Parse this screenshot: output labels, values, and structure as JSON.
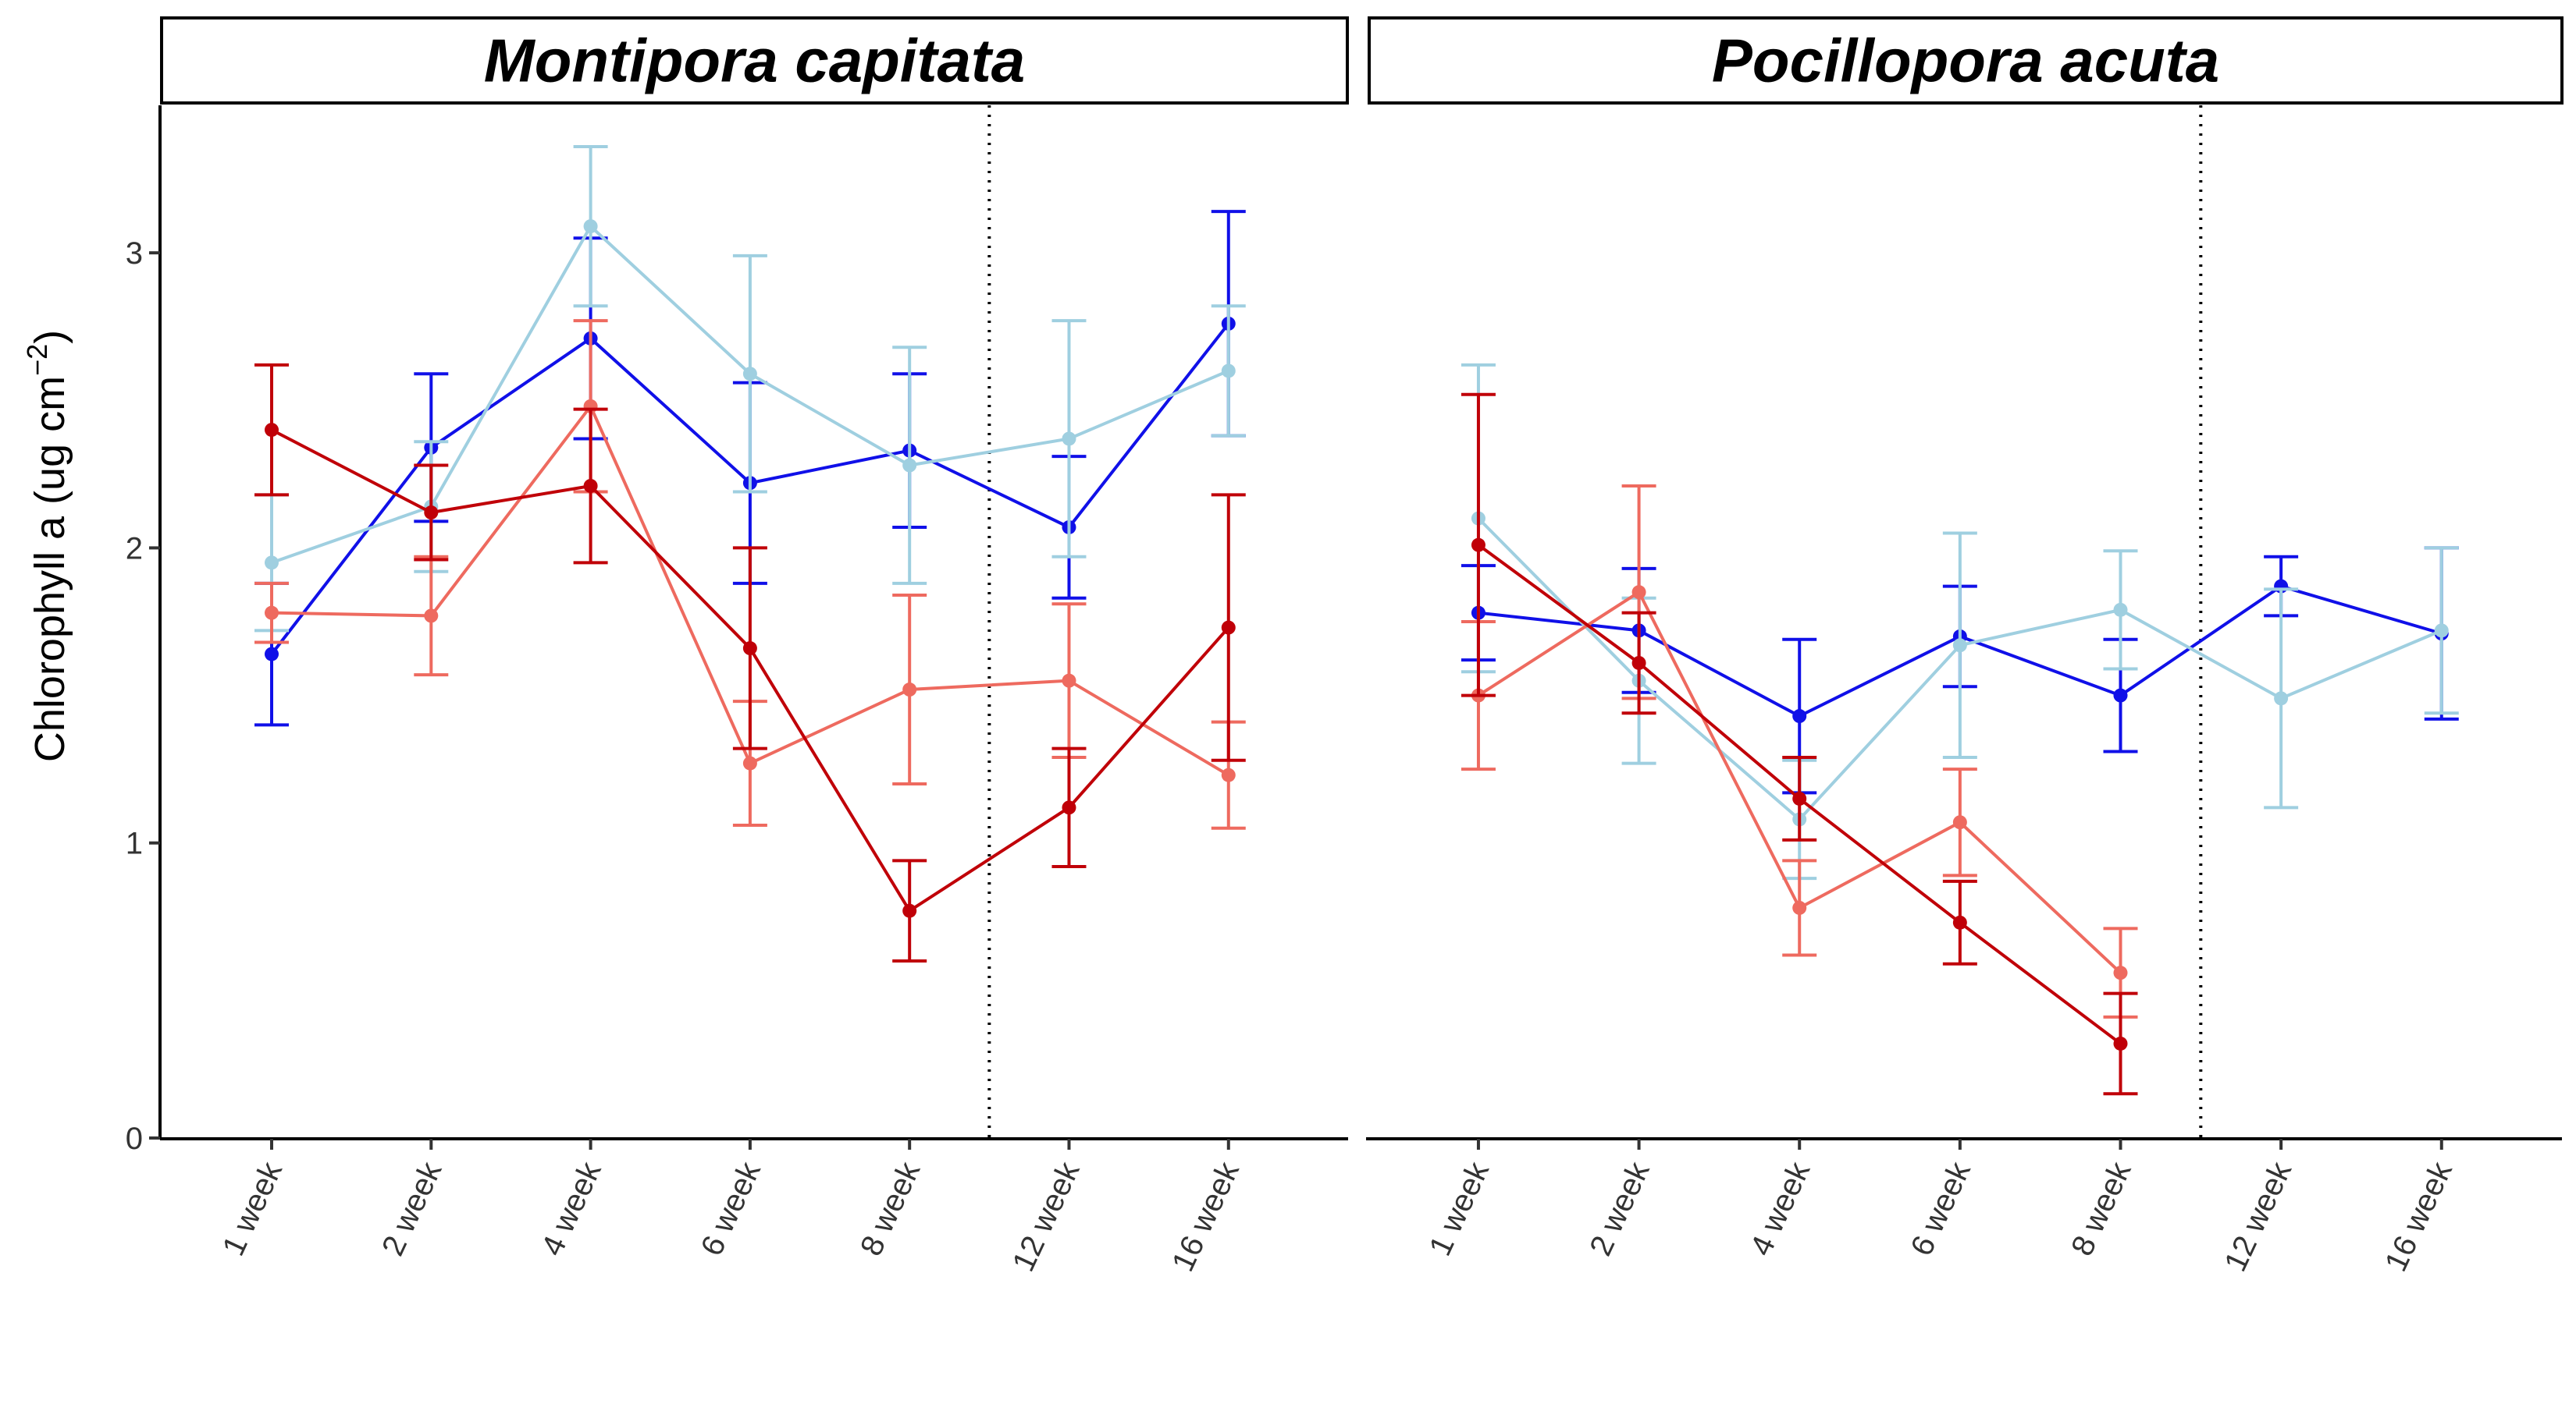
{
  "ylabel": {
    "main": "Chlorophyll a (ug cm",
    "sup": "−2",
    "close": ")"
  },
  "colors": {
    "series_1": "#1010e8",
    "series_2": "#9fcfe0",
    "series_3": "#ee6a5f",
    "series_4": "#c00008"
  },
  "chart_data": [
    {
      "type": "line",
      "title": "Montipora capitata",
      "categories": [
        "1 week",
        "2 week",
        "4 week",
        "6 week",
        "8 week",
        "12 week",
        "16 week"
      ],
      "ylim": [
        0,
        3.5
      ],
      "yticks": [
        0,
        1,
        2,
        3
      ],
      "vline_between": [
        "8 week",
        "12 week"
      ],
      "grid": false,
      "series": [
        {
          "color_key": "series_1",
          "values": [
            1.64,
            2.34,
            2.71,
            2.22,
            2.33,
            2.07,
            2.76
          ],
          "err": [
            0.24,
            0.25,
            0.34,
            0.34,
            0.26,
            0.24,
            0.38
          ]
        },
        {
          "color_key": "series_2",
          "values": [
            1.95,
            2.14,
            3.09,
            2.59,
            2.28,
            2.37,
            2.6
          ],
          "err": [
            0.23,
            0.22,
            0.27,
            0.4,
            0.4,
            0.4,
            0.22
          ]
        },
        {
          "color_key": "series_3",
          "values": [
            1.78,
            1.77,
            2.48,
            1.27,
            1.52,
            1.55,
            1.23
          ],
          "err": [
            0.1,
            0.2,
            0.29,
            0.21,
            0.32,
            0.26,
            0.18
          ]
        },
        {
          "color_key": "series_4",
          "values": [
            2.4,
            2.12,
            2.21,
            1.66,
            0.77,
            1.12,
            1.73
          ],
          "err": [
            0.22,
            0.16,
            0.26,
            0.34,
            0.17,
            0.2,
            0.45
          ]
        }
      ]
    },
    {
      "type": "line",
      "title": "Pocillopora acuta",
      "categories": [
        "1 week",
        "2 week",
        "4 week",
        "6 week",
        "8 week",
        "12 week",
        "16 week"
      ],
      "ylim": [
        0,
        3.5
      ],
      "yticks": [
        0,
        1,
        2,
        3
      ],
      "vline_between": [
        "8 week",
        "12 week"
      ],
      "grid": false,
      "series": [
        {
          "color_key": "series_1",
          "values": [
            1.78,
            1.72,
            1.43,
            1.7,
            1.5,
            1.87,
            1.71
          ],
          "err": [
            0.16,
            0.21,
            0.26,
            0.17,
            0.19,
            0.1,
            0.29
          ]
        },
        {
          "color_key": "series_2",
          "values": [
            2.1,
            1.55,
            1.08,
            1.67,
            1.79,
            1.49,
            1.72
          ],
          "err": [
            0.52,
            0.28,
            0.2,
            0.38,
            0.2,
            0.37,
            0.28
          ]
        },
        {
          "color_key": "series_3",
          "values": [
            1.5,
            1.85,
            0.78,
            1.07,
            0.56,
            null,
            null
          ],
          "err": [
            0.25,
            0.36,
            0.16,
            0.18,
            0.15,
            null,
            null
          ]
        },
        {
          "color_key": "series_4",
          "values": [
            2.01,
            1.61,
            1.15,
            0.73,
            0.32,
            null,
            null
          ],
          "err": [
            0.51,
            0.17,
            0.14,
            0.14,
            0.17,
            null,
            null
          ]
        }
      ]
    }
  ]
}
